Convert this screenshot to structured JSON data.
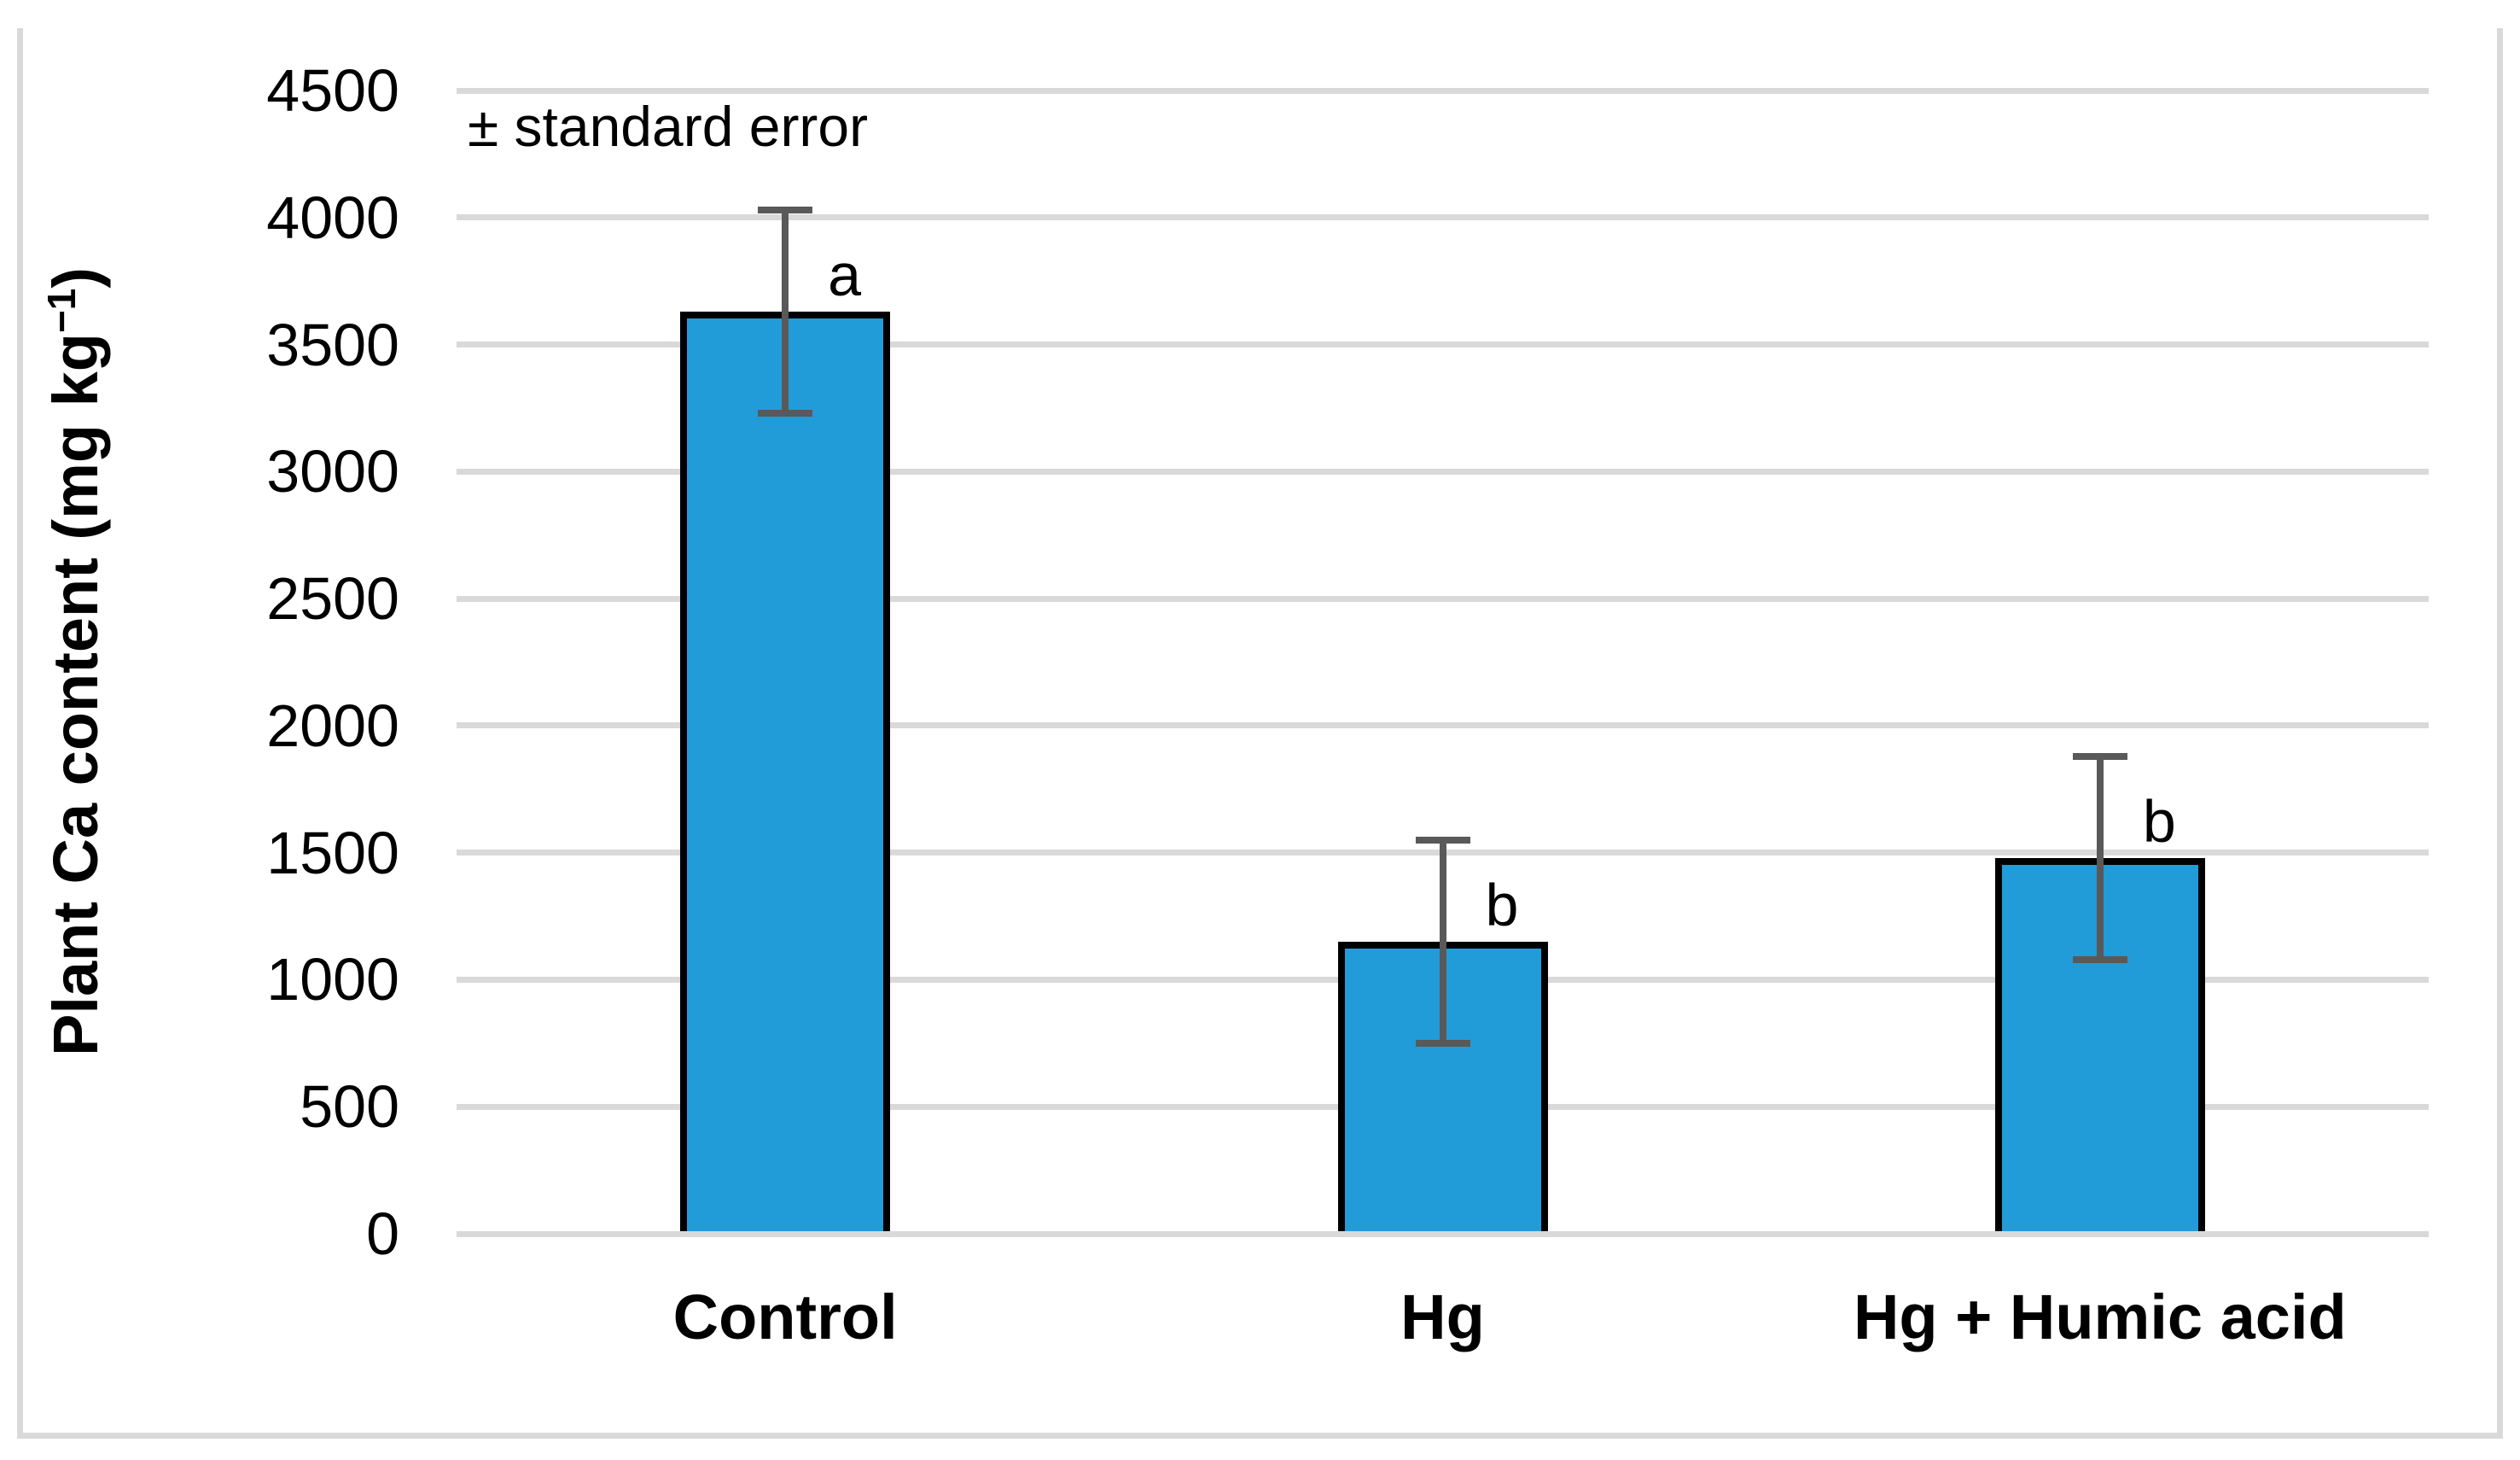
{
  "figure": {
    "background": "#ffffff",
    "frame_color": "#D9D9D9"
  },
  "annotation": "± standard error",
  "y_axis": {
    "label_full": "Plant Ca content (mg kg⁻¹)",
    "label_prefix": "Plant Ca content (mg kg",
    "label_superscript": "−1",
    "label_suffix": ")"
  },
  "chart_data": {
    "type": "bar",
    "title": "",
    "annotation": "± standard error",
    "categories": [
      "Control",
      "Hg",
      "Hg + Humic acid"
    ],
    "values": [
      3630,
      1150,
      1480
    ],
    "errors": [
      400,
      400,
      400
    ],
    "significance_letters": [
      "a",
      "b",
      "b"
    ],
    "ylabel": "Plant Ca content (mg kg⁻¹)",
    "xlabel": "",
    "ylim": [
      0,
      4500
    ],
    "yticks": [
      0,
      500,
      1000,
      1500,
      2000,
      2500,
      3000,
      3500,
      4000,
      4500
    ],
    "grid": "horizontal",
    "legend": "none",
    "error_bar_style": "plus-minus, capped",
    "colors": {
      "bar_fill": "#219CD8",
      "bar_border": "#000000",
      "error_bar": "#595959",
      "gridline": "#D9D9D9",
      "text": "#000000"
    }
  }
}
